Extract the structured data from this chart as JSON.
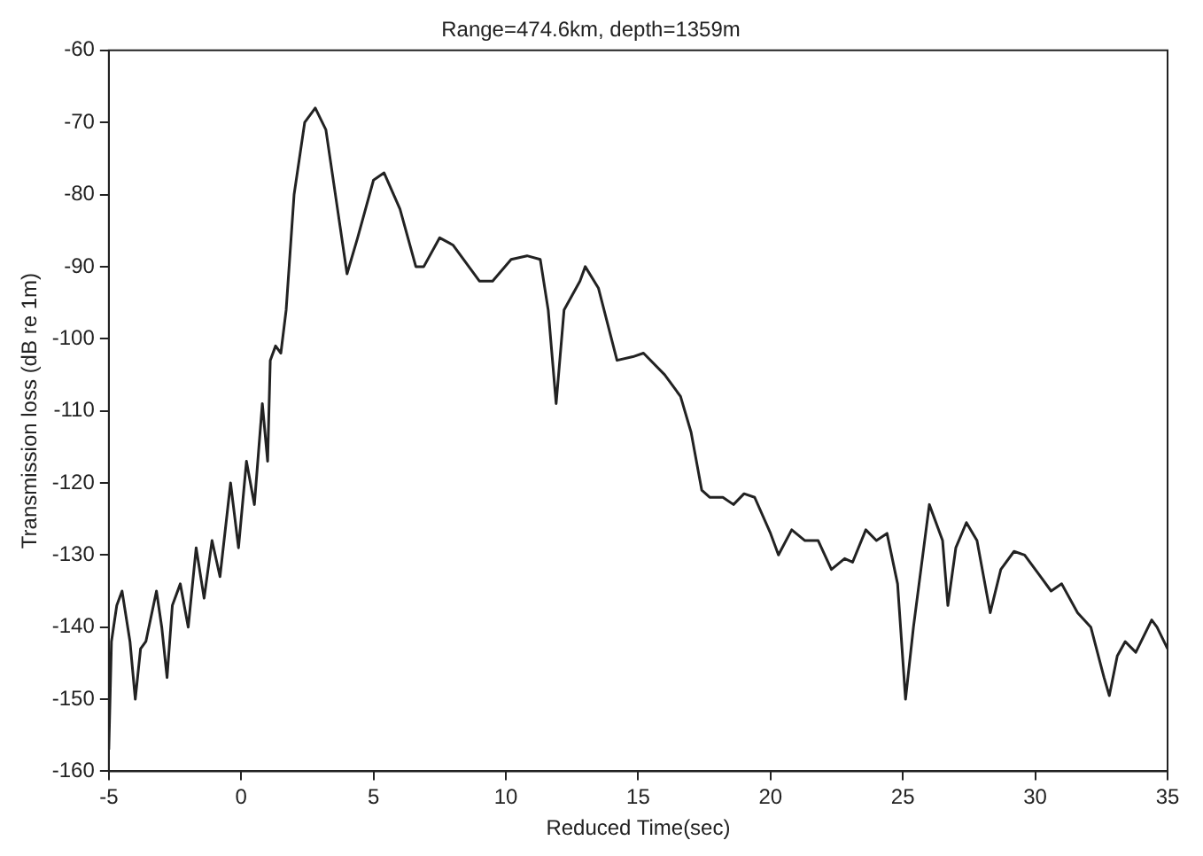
{
  "chart_data": {
    "type": "line",
    "title": "Range=474.6km, depth=1359m",
    "xlabel": "Reduced Time(sec)",
    "ylabel": "Transmission loss (dB re 1m)",
    "x": [
      -5,
      -4.9,
      -4.7,
      -4.5,
      -4.2,
      -4,
      -3.8,
      -3.6,
      -3.2,
      -3,
      -2.8,
      -2.6,
      -2.3,
      -2,
      -1.7,
      -1.4,
      -1.1,
      -0.8,
      -0.4,
      -0.1,
      0.2,
      0.5,
      0.8,
      1.0,
      1.1,
      1.3,
      1.5,
      1.7,
      2.0,
      2.4,
      2.8,
      3.2,
      3.6,
      4.0,
      4.4,
      5.0,
      5.4,
      6.0,
      6.6,
      6.9,
      7.5,
      8.0,
      9.0,
      9.5,
      10.2,
      10.8,
      11.3,
      11.6,
      11.9,
      12.2,
      12.8,
      13.0,
      13.5,
      14.2,
      14.8,
      15.2,
      16,
      16.6,
      17.0,
      17.4,
      17.7,
      18.2,
      18.6,
      19.0,
      19.4,
      20.0,
      20.3,
      20.8,
      21.3,
      21.8,
      22.3,
      22.8,
      23.1,
      23.6,
      24.0,
      24.4,
      24.8,
      25.1,
      25.4,
      26.0,
      26.5,
      26.7,
      27.0,
      27.4,
      27.8,
      28.3,
      28.7,
      29.2,
      29.6,
      30.2,
      30.6,
      31.0,
      31.6,
      32.1,
      32.6,
      32.8,
      33.1,
      33.4,
      33.8,
      34.4,
      34.6,
      35
    ],
    "series": [
      {
        "color": "#222222",
        "values": [
          -157,
          -142,
          -137,
          -135,
          -142,
          -150,
          -143,
          -142,
          -135,
          -140,
          -147,
          -137,
          -134,
          -140,
          -129,
          -136,
          -128,
          -133,
          -120,
          -129,
          -117,
          -123,
          -109,
          -117,
          -103,
          -101,
          -102,
          -96,
          -80,
          -70,
          -68,
          -71,
          -81,
          -91,
          -86,
          -78,
          -77,
          -82,
          -90,
          -90,
          -86,
          -87,
          -92,
          -92,
          -89,
          -88.5,
          -89,
          -96,
          -109,
          -96,
          -92,
          -90,
          -93,
          -103,
          -102.5,
          -102,
          -105,
          -108,
          -113,
          -121,
          -122,
          -122,
          -123,
          -121.5,
          -122,
          -127,
          -130,
          -126.5,
          -128,
          -128,
          -132,
          -130.5,
          -131,
          -126.5,
          -128,
          -127,
          -134,
          -150,
          -140,
          -123,
          -128,
          -137,
          -129,
          -125.5,
          -128,
          -138,
          -132,
          -129.5,
          -130,
          -133,
          -135,
          -134,
          -138,
          -140,
          -147,
          -149.5,
          -144,
          -142,
          -143.5,
          -139,
          -140,
          -143
        ]
      }
    ],
    "xlim": [
      -5,
      35
    ],
    "xticks": [
      -5,
      0,
      5,
      10,
      15,
      20,
      25,
      30,
      35
    ],
    "ylim": [
      -160,
      -60
    ],
    "yticks": [
      -160,
      -150,
      -140,
      -130,
      -120,
      -110,
      -100,
      -90,
      -80,
      -70,
      -60
    ],
    "grid": false,
    "legend": false,
    "marker": "none",
    "line_style": "solid"
  }
}
